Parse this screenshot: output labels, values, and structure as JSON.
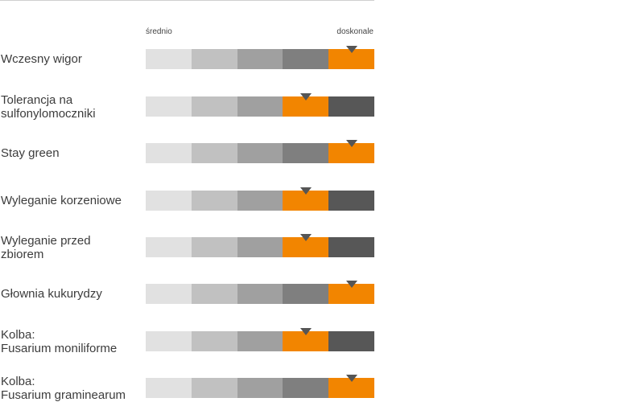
{
  "scale": {
    "low_label": "średnio",
    "high_label": "doskonale",
    "levels": 5,
    "colors": {
      "base": [
        "#e1e1e1",
        "#c1c1c1",
        "#a0a0a0",
        "#7f7f7f",
        "#575757"
      ],
      "highlight": "#f28500",
      "marker": "#555555"
    }
  },
  "traits": [
    {
      "label": "Wczesny wigor",
      "rating": 5
    },
    {
      "label": "Tolerancja na\nsulfonylomoczniki",
      "rating": 4
    },
    {
      "label": "Stay green",
      "rating": 5
    },
    {
      "label": "Wyleganie korzeniowe",
      "rating": 4
    },
    {
      "label": "Wyleganie przed\nzbiorem",
      "rating": 4
    },
    {
      "label": "Głownia kukurydzy",
      "rating": 5
    },
    {
      "label": "Kolba:\nFusarium moniliforme",
      "rating": 4
    },
    {
      "label": "Kolba:\nFusarium graminearum",
      "rating": 5
    }
  ]
}
